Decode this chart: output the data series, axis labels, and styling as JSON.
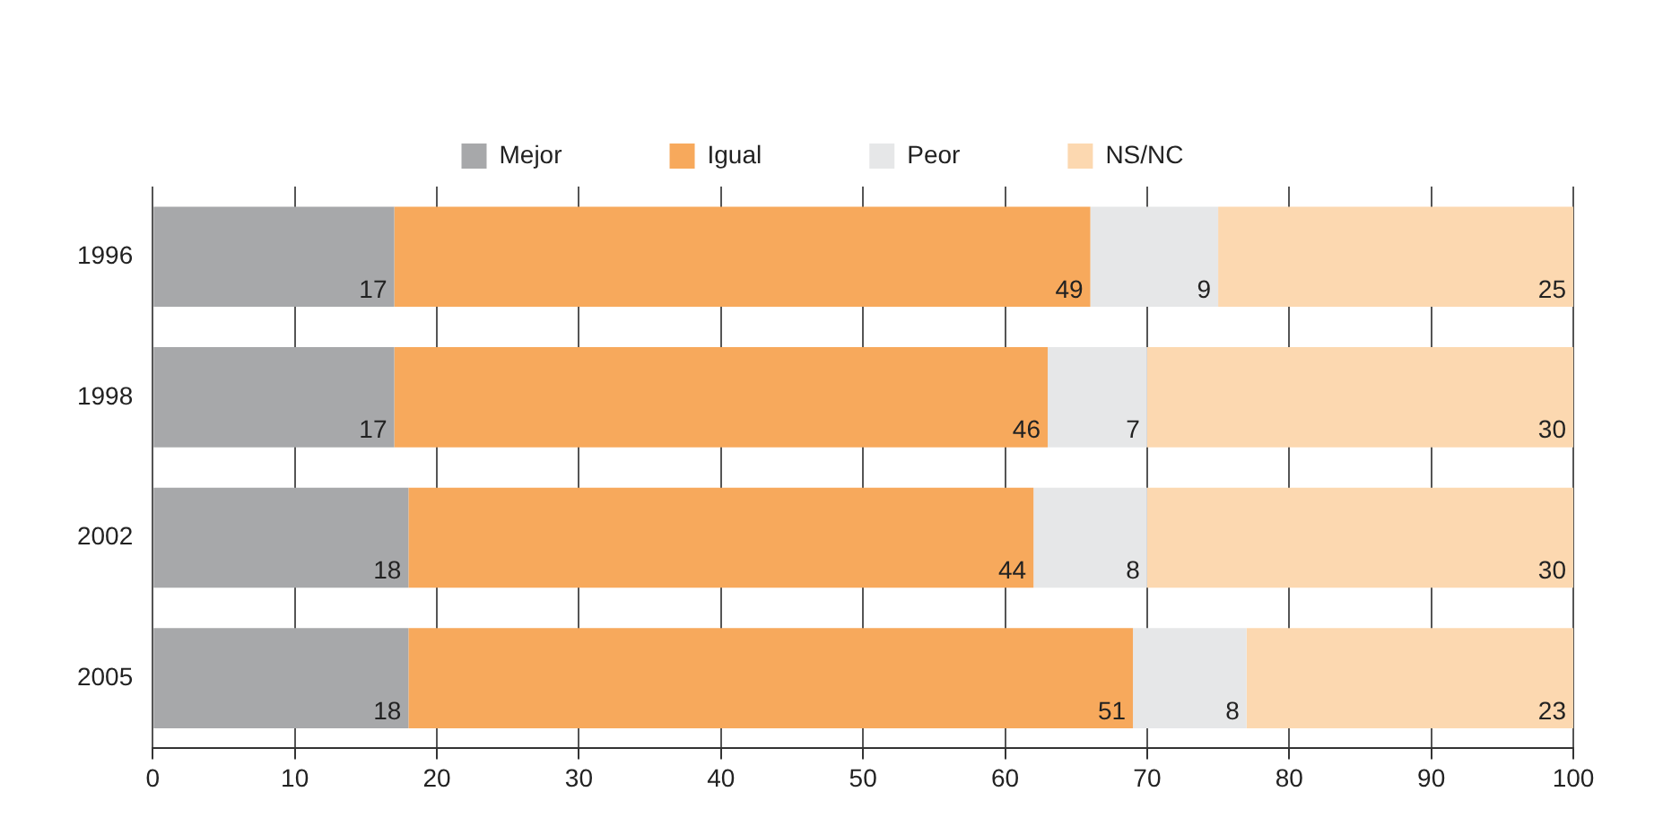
{
  "chart_data": {
    "type": "bar",
    "orientation": "horizontal",
    "stacked": true,
    "categories": [
      "1996",
      "1998",
      "2002",
      "2005"
    ],
    "series": [
      {
        "name": "Mejor",
        "color": "#a7a8aa",
        "values": [
          17,
          17,
          18,
          18
        ]
      },
      {
        "name": "Igual",
        "color": "#f7a95c",
        "values": [
          49,
          46,
          44,
          51
        ]
      },
      {
        "name": "Peor",
        "color": "#e6e7e8",
        "values": [
          9,
          7,
          8,
          8
        ]
      },
      {
        "name": "NS/NC",
        "color": "#fcd8b0",
        "values": [
          25,
          30,
          30,
          23
        ]
      }
    ],
    "xlim": [
      0,
      100
    ],
    "xticks": [
      0,
      10,
      20,
      30,
      40,
      50,
      60,
      70,
      80,
      90,
      100
    ],
    "grid": "x",
    "legend": "top",
    "data_labels": true
  }
}
